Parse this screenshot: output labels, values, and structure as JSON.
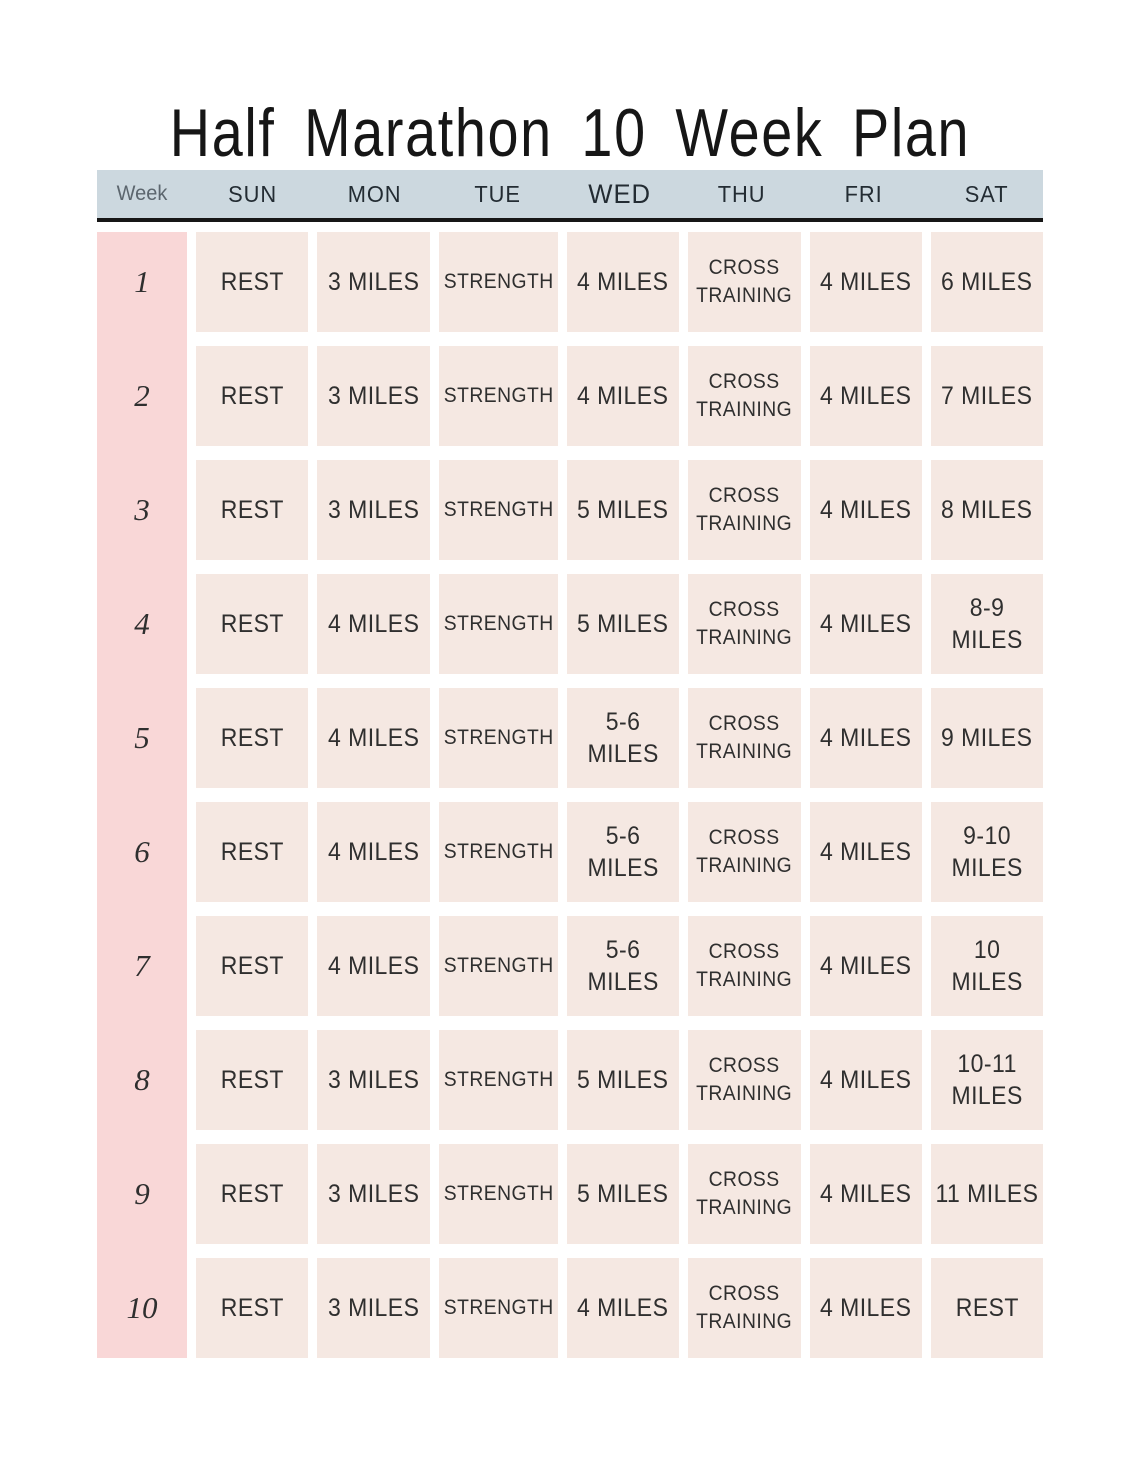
{
  "title": "Half Marathon 10 Week Plan",
  "colors": {
    "title_color": "#161616",
    "header_bg": "#ccd8df",
    "header_border": "#161616",
    "week_col_bg": "#f9d7d7",
    "cell_bg": "#f5e8e2",
    "cell_text": "#2f2f2f",
    "day_label": "#232c33",
    "week_label": "#5c666e"
  },
  "header": {
    "week_label": "Week",
    "days": [
      "SUN",
      "MON",
      "TUE",
      "WED",
      "THU",
      "FRI",
      "SAT"
    ]
  },
  "rows": [
    {
      "week": "1",
      "cells": [
        "REST",
        "3 MILES",
        "STRENGTH",
        "4 MILES",
        "CROSS TRAINING",
        "4 MILES",
        "6 MILES"
      ]
    },
    {
      "week": "2",
      "cells": [
        "REST",
        "3 MILES",
        "STRENGTH",
        "4 MILES",
        "CROSS TRAINING",
        "4 MILES",
        "7 MILES"
      ]
    },
    {
      "week": "3",
      "cells": [
        "REST",
        "3 MILES",
        "STRENGTH",
        "5 MILES",
        "CROSS TRAINING",
        "4 MILES",
        "8 MILES"
      ]
    },
    {
      "week": "4",
      "cells": [
        "REST",
        "4 MILES",
        "STRENGTH",
        "5 MILES",
        "CROSS TRAINING",
        "4 MILES",
        "8-9 MILES"
      ]
    },
    {
      "week": "5",
      "cells": [
        "REST",
        "4 MILES",
        "STRENGTH",
        "5-6 MILES",
        "CROSS TRAINING",
        "4 MILES",
        "9 MILES"
      ]
    },
    {
      "week": "6",
      "cells": [
        "REST",
        "4 MILES",
        "STRENGTH",
        "5-6 MILES",
        "CROSS TRAINING",
        "4 MILES",
        "9-10 MILES"
      ]
    },
    {
      "week": "7",
      "cells": [
        "REST",
        "4 MILES",
        "STRENGTH",
        "5-6 MILES",
        "CROSS TRAINING",
        "4 MILES",
        "10 MILES"
      ]
    },
    {
      "week": "8",
      "cells": [
        "REST",
        "3 MILES",
        "STRENGTH",
        "5 MILES",
        "CROSS TRAINING",
        "4 MILES",
        "10-11 MILES"
      ]
    },
    {
      "week": "9",
      "cells": [
        "REST",
        "3 MILES",
        "STRENGTH",
        "5 MILES",
        "CROSS TRAINING",
        "4 MILES",
        "11 MILES"
      ]
    },
    {
      "week": "10",
      "cells": [
        "REST",
        "3 MILES",
        "STRENGTH",
        "4 MILES",
        "CROSS TRAINING",
        "4 MILES",
        "REST"
      ]
    }
  ]
}
